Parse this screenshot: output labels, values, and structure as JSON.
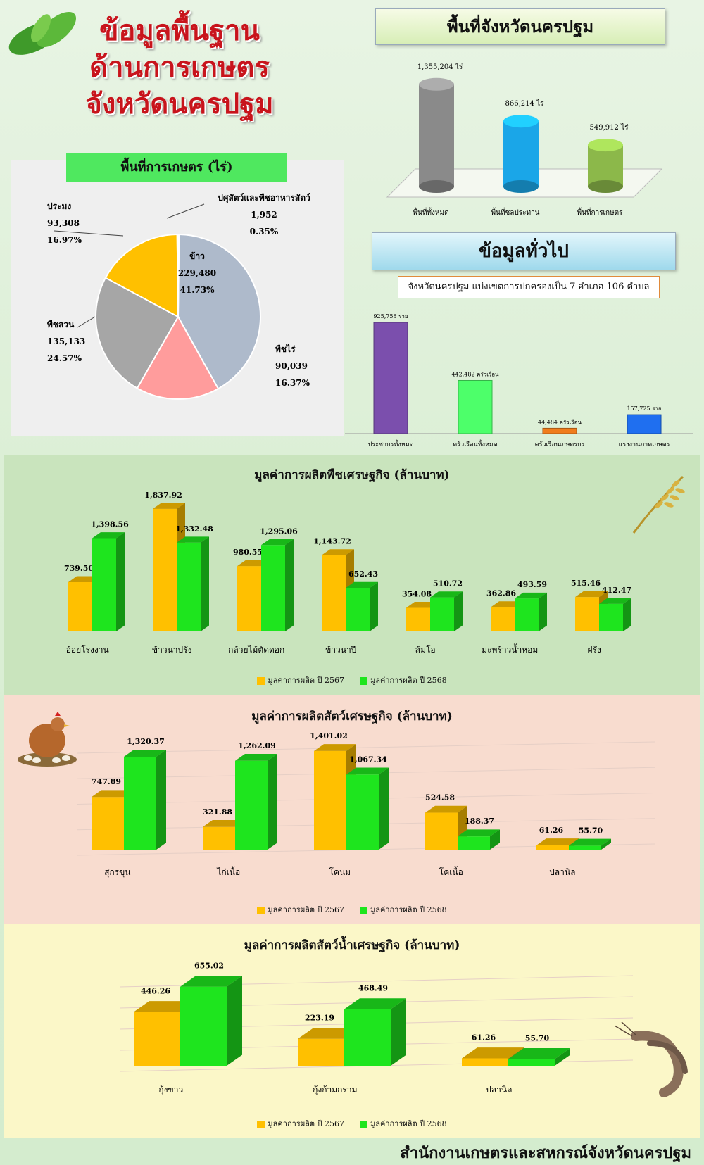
{
  "header": {
    "title_lines": [
      "ข้อมูลพื้นฐาน",
      "ด้านการเกษตร",
      "จังหวัดนครปฐม"
    ]
  },
  "colors": {
    "y2567": "#ffc000",
    "y2568": "#1ee51e",
    "title_red": "#c8141c"
  },
  "area": {
    "title": "พื้นที่จังหวัดนครปฐม",
    "chart_data": {
      "type": "bar",
      "categories": [
        "พื้นที่ทั้งหมด",
        "พื้นที่ชลประทาน",
        "พื้นที่การเกษตร"
      ],
      "values": [
        1355204,
        866214,
        549912
      ],
      "value_labels": [
        "1,355,204 ไร่",
        "866,214 ไร่",
        "549,912 ไร่"
      ],
      "colors": [
        "#8a8a8a",
        "#1aa6e8",
        "#8cb84a"
      ]
    }
  },
  "farm": {
    "title": "พื้นที่การเกษตร (ไร่)",
    "chart_data": {
      "type": "pie",
      "slices": [
        {
          "name": "ข้าว",
          "value": 229480,
          "value_text": "229,480",
          "pct": "41.73%",
          "color": "#aebacb"
        },
        {
          "name": "พืชไร่",
          "value": 90039,
          "value_text": "90,039",
          "pct": "16.37%",
          "color": "#ff9c9c"
        },
        {
          "name": "พืชสวน",
          "value": 135133,
          "value_text": "135,133",
          "pct": "24.57%",
          "color": "#a6a6a6"
        },
        {
          "name": "ประมง",
          "value": 93308,
          "value_text": "93,308",
          "pct": "16.97%",
          "color": "#ffc000"
        },
        {
          "name": "ปศุสัตว์และพืชอาหารสัตว์",
          "value": 1952,
          "value_text": "1,952",
          "pct": "0.35%",
          "color": "#ffffff"
        }
      ]
    }
  },
  "general": {
    "title": "ข้อมูลทั่วไป",
    "subdistrict_text": "จังหวัดนครปฐม แบ่งเขตการปกครองเป็น 7 อำเภอ 106 ตำบล",
    "chart_data": {
      "type": "bar",
      "categories": [
        "ประชากรทั้งหมด",
        "ครัวเรือนทั้งหมด",
        "ครัวเรือนเกษตรกร",
        "แรงงานภาคเกษตร"
      ],
      "values": [
        925758,
        442482,
        44484,
        157725
      ],
      "value_labels": [
        "925,758 ราย",
        "442,482 ครัวเรือน",
        "44,484 ครัวเรือน",
        "157,725 ราย"
      ],
      "colors": [
        "#7b4fad",
        "#4dff6a",
        "#f07c1c",
        "#1f6ff0"
      ]
    }
  },
  "legend": {
    "y2567": "มูลค่าการผลิต ปี 2567",
    "y2568": "มูลค่าการผลิต ปี 2568"
  },
  "crops": {
    "title": "มูลค่าการผลิตพืชเศรษฐกิจ (ล้านบาท)",
    "chart_data": {
      "type": "bar",
      "categories": [
        "อ้อยโรงงาน",
        "ข้าวนาปรัง",
        "กล้วยไม้ตัดดอก",
        "ข้าวนาปี",
        "ส้มโอ",
        "มะพร้าวน้ำหอม",
        "ฝรั่ง"
      ],
      "series": [
        {
          "name": "มูลค่าการผลิต ปี 2567",
          "values": [
            739.5,
            1837.92,
            980.55,
            1143.72,
            354.08,
            362.86,
            515.46
          ],
          "labels": [
            "739.50",
            "1,837.92",
            "980.55",
            "1,143.72",
            "354.08",
            "362.86",
            "515.46"
          ]
        },
        {
          "name": "มูลค่าการผลิต ปี 2568",
          "values": [
            1398.56,
            1332.48,
            1295.06,
            652.43,
            510.72,
            493.59,
            412.47
          ],
          "labels": [
            "1,398.56",
            "1,332.48",
            "1,295.06",
            "652.43",
            "510.72",
            "493.59",
            "412.47"
          ]
        }
      ]
    }
  },
  "livestock": {
    "title": "มูลค่าการผลิตสัตว์เศรษฐกิจ (ล้านบาท)",
    "chart_data": {
      "type": "bar",
      "categories": [
        "สุกรขุน",
        "ไก่เนื้อ",
        "โคนม",
        "โคเนื้อ",
        "ปลานิล"
      ],
      "series": [
        {
          "name": "มูลค่าการผลิต ปี 2567",
          "values": [
            747.89,
            321.88,
            1401.02,
            524.58,
            61.26
          ],
          "labels": [
            "747.89",
            "321.88",
            "1,401.02",
            "524.58",
            "61.26"
          ]
        },
        {
          "name": "มูลค่าการผลิต ปี 2568",
          "values": [
            1320.37,
            1262.09,
            1067.34,
            188.37,
            55.7
          ],
          "labels": [
            "1,320.37",
            "1,262.09",
            "1,067.34",
            "188.37",
            "55.70"
          ]
        }
      ]
    }
  },
  "aquatic": {
    "title": "มูลค่าการผลิตสัตว์น้ำเศรษฐกิจ (ล้านบาท)",
    "chart_data": {
      "type": "bar",
      "categories": [
        "กุ้งขาว",
        "กุ้งก้ามกราม",
        "ปลานิล"
      ],
      "series": [
        {
          "name": "มูลค่าการผลิต ปี 2567",
          "values": [
            446.26,
            223.19,
            61.26
          ],
          "labels": [
            "446.26",
            "223.19",
            "61.26"
          ]
        },
        {
          "name": "มูลค่าการผลิต ปี 2568",
          "values": [
            655.02,
            468.49,
            55.7
          ],
          "labels": [
            "655.02",
            "468.49",
            "55.70"
          ]
        }
      ]
    }
  },
  "footer": {
    "text": "สำนักงานเกษตรและสหกรณ์จังหวัดนครปฐม"
  }
}
